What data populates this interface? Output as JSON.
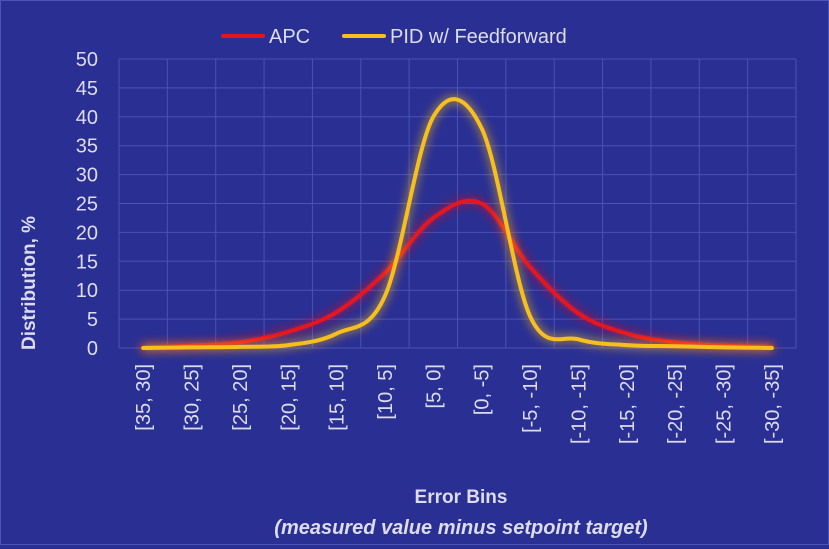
{
  "chart_data": {
    "type": "line",
    "title": "",
    "categories": [
      "[35, 30]",
      "[30, 25]",
      "[25, 20]",
      "[20, 15]",
      "[15, 10]",
      "[10, 5]",
      "[5, 0]",
      "[0, -5]",
      "[-5, -10]",
      "[-10, -15]",
      "[-15, -20]",
      "[-20, -25]",
      "[-25, -30]",
      "[-30, -35]"
    ],
    "series": [
      {
        "name": "APC",
        "color": "#e8141b",
        "values": [
          0.1,
          0.4,
          1.0,
          2.8,
          6.2,
          13.0,
          22.5,
          25.0,
          14.0,
          6.0,
          2.5,
          1.0,
          0.4,
          0.2
        ]
      },
      {
        "name": "PID w/ Feedforward",
        "color": "#f7bf1e",
        "values": [
          0.0,
          0.1,
          0.2,
          0.5,
          2.5,
          9.0,
          40.0,
          38.0,
          5.5,
          1.5,
          0.5,
          0.3,
          0.1,
          0.0
        ]
      }
    ],
    "ylabel": "Distribution, %",
    "xlabel": "Error Bins",
    "xlabel_sub": "(measured value minus setpoint target)",
    "ylim": [
      0,
      50
    ],
    "yticks": [
      0,
      5,
      10,
      15,
      20,
      25,
      30,
      35,
      40,
      45,
      50
    ],
    "grid": true,
    "legend_position": "top-center",
    "colors": {
      "background": "#2a2f93",
      "grid": "#4a52b5",
      "text": "#dcdcec"
    }
  }
}
